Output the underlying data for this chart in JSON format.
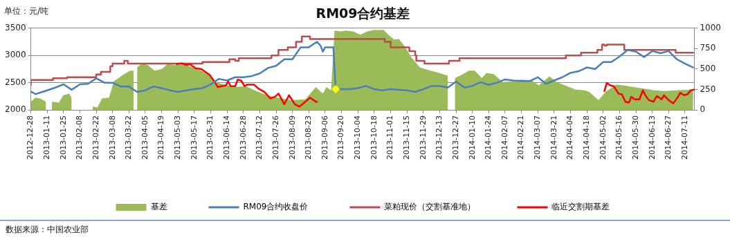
{
  "chart_data": {
    "type": "line",
    "title": "RM09合约基差",
    "ylabel": "单位：元/吨",
    "annotations": [
      "数据来源：中国农业部"
    ],
    "xlim": [
      "2012-12-28",
      "2014-07-19"
    ],
    "xticks": [
      "2012-12-28",
      "2013-01-11",
      "2013-01-25",
      "2013-02-08",
      "2013-02-22",
      "2013-03-08",
      "2013-03-22",
      "2013-04-05",
      "2013-04-19",
      "2013-05-03",
      "2013-05-17",
      "2013-05-31",
      "2013-06-14",
      "2013-06-28",
      "2013-07-12",
      "2013-07-26",
      "2013-08-09",
      "2013-08-23",
      "2013-09-06",
      "2013-09-20",
      "2013-10-04",
      "2013-10-18",
      "2013-11-01",
      "2013-11-15",
      "2013-11-29",
      "2013-12-13",
      "2013-12-27",
      "2014-01-10",
      "2014-01-24",
      "2014-02-07",
      "2014-02-21",
      "2014-03-07",
      "2014-03-21",
      "2014-04-04",
      "2014-04-18",
      "2014-05-02",
      "2014-05-16",
      "2014-05-30",
      "2014-06-13",
      "2014-06-27",
      "2014-07-11"
    ],
    "ylim": [
      2000,
      3500
    ],
    "yticks": [
      2000,
      2500,
      3000,
      3500
    ],
    "y2lim": [
      0,
      1000
    ],
    "y2ticks": [
      0,
      250,
      500,
      750,
      1000
    ],
    "grid": "y",
    "legend": "bottom",
    "marker": "none",
    "series": [
      {
        "name": "基差",
        "type": "area",
        "axis": "y2",
        "color": "#9bbb59",
        "x": [
          "2012-12-28",
          "2013-01-01",
          "2013-01-05",
          "2013-01-10",
          "2013-01-11",
          "2013-01-15",
          "2013-01-21",
          "2013-01-25",
          "2013-01-30",
          "2013-02-01",
          "2013-02-02",
          "2013-02-19",
          "2013-02-23",
          "2013-02-27",
          "2013-03-05",
          "2013-03-09",
          "2013-03-13",
          "2013-03-17",
          "2013-03-23",
          "2013-03-26",
          "2013-03-27",
          "2013-03-29",
          "2013-04-02",
          "2013-04-07",
          "2013-04-13",
          "2013-04-19",
          "2013-04-24",
          "2013-05-01",
          "2013-05-10",
          "2013-05-19",
          "2013-05-28",
          "2013-06-03",
          "2013-06-09",
          "2013-06-21",
          "2013-06-30",
          "2013-07-09",
          "2013-07-18",
          "2013-07-27",
          "2013-08-08",
          "2013-08-20",
          "2013-08-29",
          "2013-09-04",
          "2013-09-07",
          "2013-09-11",
          "2013-09-14",
          "2013-09-19",
          "2013-09-24",
          "2013-09-30",
          "2013-10-06",
          "2013-10-12",
          "2013-10-18",
          "2013-10-26",
          "2013-10-30",
          "2013-11-04",
          "2013-11-08",
          "2013-11-13",
          "2013-11-19",
          "2013-11-26",
          "2013-12-05",
          "2013-12-11",
          "2013-12-20",
          "2013-12-23",
          "2013-12-26",
          "2014-01-01",
          "2014-01-07",
          "2014-01-12",
          "2014-01-18",
          "2014-01-22",
          "2014-01-28",
          "2014-02-05",
          "2014-02-12",
          "2014-02-21",
          "2014-03-02",
          "2014-03-08",
          "2014-03-17",
          "2014-03-23",
          "2014-04-01",
          "2014-04-08",
          "2014-04-16",
          "2014-04-20",
          "2014-04-28",
          "2014-05-04",
          "2014-05-13",
          "2014-05-19",
          "2014-05-28",
          "2014-06-06",
          "2014-06-15",
          "2014-06-24",
          "2014-07-03",
          "2014-07-18"
        ],
        "values": [
          100,
          150,
          140,
          100,
          null,
          100,
          90,
          180,
          200,
          140,
          null,
          40,
          30,
          140,
          150,
          350,
          390,
          430,
          480,
          480,
          null,
          520,
          570,
          550,
          480,
          500,
          560,
          550,
          550,
          500,
          450,
          350,
          320,
          280,
          290,
          230,
          180,
          150,
          120,
          130,
          280,
          200,
          280,
          240,
          970,
          960,
          970,
          960,
          920,
          960,
          980,
          980,
          920,
          860,
          870,
          780,
          640,
          520,
          480,
          460,
          420,
          null,
          390,
          430,
          480,
          480,
          390,
          450,
          440,
          340,
          350,
          370,
          360,
          300,
          410,
          340,
          290,
          250,
          240,
          220,
          120,
          220,
          310,
          300,
          280,
          260,
          240,
          230,
          240,
          250
        ]
      },
      {
        "name": "RM09合约收盘价",
        "type": "line",
        "color": "#4a7ebb",
        "x": [
          "2012-12-28",
          "2013-01-01",
          "2013-01-11",
          "2013-01-18",
          "2013-01-25",
          "2013-02-01",
          "2013-02-08",
          "2013-02-15",
          "2013-02-22",
          "2013-03-01",
          "2013-03-08",
          "2013-03-15",
          "2013-03-22",
          "2013-03-29",
          "2013-04-05",
          "2013-04-12",
          "2013-04-19",
          "2013-04-26",
          "2013-05-03",
          "2013-05-10",
          "2013-05-17",
          "2013-05-24",
          "2013-05-31",
          "2013-06-07",
          "2013-06-14",
          "2013-06-21",
          "2013-06-28",
          "2013-07-05",
          "2013-07-12",
          "2013-07-19",
          "2013-07-26",
          "2013-08-02",
          "2013-08-09",
          "2013-08-16",
          "2013-08-23",
          "2013-08-30",
          "2013-09-02",
          "2013-09-04",
          "2013-09-06",
          "2013-09-13",
          "2013-09-15",
          "2013-09-20",
          "2013-09-27",
          "2013-10-04",
          "2013-10-11",
          "2013-10-18",
          "2013-10-25",
          "2013-11-01",
          "2013-11-08",
          "2013-11-15",
          "2013-11-22",
          "2013-11-29",
          "2013-12-06",
          "2013-12-13",
          "2013-12-20",
          "2013-12-27",
          "2014-01-03",
          "2014-01-10",
          "2014-01-17",
          "2014-01-24",
          "2014-01-31",
          "2014-02-07",
          "2014-02-14",
          "2014-02-21",
          "2014-02-28",
          "2014-03-07",
          "2014-03-14",
          "2014-03-21",
          "2014-03-28",
          "2014-04-04",
          "2014-04-11",
          "2014-04-18",
          "2014-04-25",
          "2014-05-02",
          "2014-05-09",
          "2014-05-16",
          "2014-05-23",
          "2014-05-30",
          "2014-06-06",
          "2014-06-13",
          "2014-06-20",
          "2014-06-27",
          "2014-07-04",
          "2014-07-11",
          "2014-07-18"
        ],
        "values": [
          2340,
          2290,
          2360,
          2410,
          2470,
          2370,
          2470,
          2480,
          2580,
          2500,
          2500,
          2430,
          2430,
          2330,
          2360,
          2430,
          2400,
          2360,
          2330,
          2360,
          2380,
          2400,
          2470,
          2570,
          2540,
          2600,
          2600,
          2620,
          2670,
          2770,
          2810,
          2930,
          2930,
          3150,
          3150,
          3250,
          3180,
          3070,
          3150,
          3150,
          2380,
          2380,
          2380,
          2400,
          2440,
          2380,
          2360,
          2380,
          2370,
          2360,
          2330,
          2380,
          2440,
          2440,
          2410,
          2520,
          2410,
          2440,
          2510,
          2460,
          2500,
          2560,
          2540,
          2530,
          2530,
          2600,
          2480,
          2540,
          2600,
          2680,
          2710,
          2780,
          2750,
          2880,
          2880,
          2980,
          3100,
          3070,
          2970,
          3080,
          3040,
          3080,
          2930,
          2850,
          2780
        ]
      },
      {
        "name": "菜粕现价（交割基准地）",
        "type": "step",
        "color": "#be4b48",
        "x": [
          "2012-12-28",
          "2013-01-16",
          "2013-01-28",
          "2013-02-22",
          "2013-02-26",
          "2013-03-06",
          "2013-03-08",
          "2013-03-18",
          "2013-03-21",
          "2013-05-24",
          "2013-06-16",
          "2013-06-21",
          "2013-06-24",
          "2013-07-22",
          "2013-07-28",
          "2013-08-05",
          "2013-08-12",
          "2013-08-17",
          "2013-08-24",
          "2013-10-27",
          "2013-11-01",
          "2013-11-17",
          "2013-11-22",
          "2013-11-23",
          "2013-11-30",
          "2013-12-21",
          "2013-12-30",
          "2014-03-31",
          "2014-04-13",
          "2014-04-27",
          "2014-05-01",
          "2014-05-03",
          "2014-05-05",
          "2014-05-20",
          "2014-07-03",
          "2014-07-07",
          "2014-07-18"
        ],
        "values": [
          2450,
          2550,
          2580,
          2600,
          2650,
          2700,
          2800,
          2850,
          2900,
          2850,
          2880,
          2930,
          2900,
          2950,
          3000,
          3100,
          3150,
          3250,
          3350,
          3300,
          3250,
          3150,
          3080,
          3000,
          2900,
          2850,
          2900,
          2950,
          3000,
          3050,
          3100,
          3200,
          3180,
          3200,
          3100,
          3050,
          3050
        ]
      },
      {
        "name": "临近交割期基差",
        "type": "line",
        "axis": "y2",
        "color": "#ff0000",
        "x": [
          "2013-05-02",
          "2013-05-06",
          "2013-05-10",
          "2013-05-13",
          "2013-05-18",
          "2013-05-23",
          "2013-05-26",
          "2013-05-30",
          "2013-06-04",
          "2013-06-06",
          "2013-06-13",
          "2013-06-15",
          "2013-06-17",
          "2013-06-21",
          "2013-06-23",
          "2013-06-26",
          "2013-06-29",
          "2013-07-01",
          "2013-07-07",
          "2013-07-11",
          "2013-07-16",
          "2013-07-21",
          "2013-07-25",
          "2013-07-28",
          "2013-08-02",
          "2013-08-06",
          "2013-08-11",
          "2013-08-15",
          "2013-08-20",
          "2013-08-24",
          "2013-08-29",
          "2013-08-30",
          "2014-01-01",
          "2014-05-03",
          "2014-05-05",
          "2014-05-08",
          "2014-05-11",
          "2014-05-15",
          "2014-05-18",
          "2014-05-21",
          "2014-05-24",
          "2014-05-26",
          "2014-05-29",
          "2014-06-02",
          "2014-06-05",
          "2014-06-07",
          "2014-06-10",
          "2014-06-14",
          "2014-06-17",
          "2014-06-21",
          "2014-06-23",
          "2014-06-27",
          "2014-07-01",
          "2014-07-05",
          "2014-07-07",
          "2014-07-10",
          "2014-07-13",
          "2014-07-16",
          "2014-07-19"
        ],
        "values": [
          560,
          570,
          550,
          560,
          510,
          500,
          470,
          430,
          330,
          280,
          300,
          350,
          290,
          290,
          370,
          360,
          290,
          310,
          310,
          260,
          220,
          140,
          160,
          200,
          70,
          180,
          70,
          40,
          100,
          150,
          100,
          100,
          null,
          230,
          330,
          300,
          290,
          200,
          190,
          100,
          90,
          160,
          130,
          130,
          240,
          180,
          120,
          100,
          170,
          130,
          180,
          120,
          80,
          160,
          210,
          180,
          190,
          240,
          250
        ]
      },
      {
        "type": "scatter",
        "color": "#ffff00",
        "marker": "diamond",
        "x": [
          "2013-09-15"
        ],
        "values": [
          2380
        ]
      }
    ]
  }
}
